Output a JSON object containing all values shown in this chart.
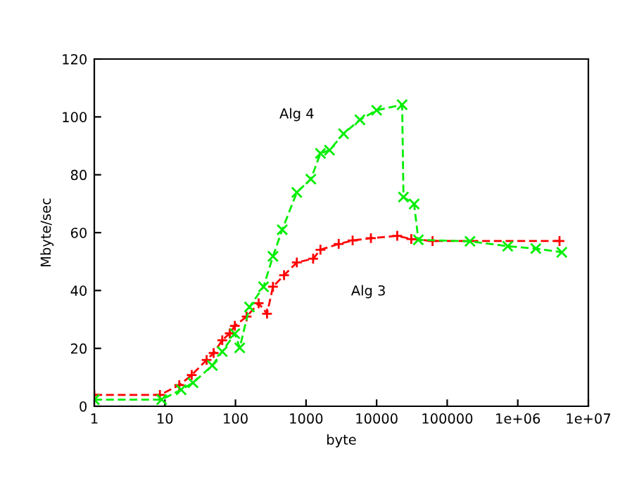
{
  "chart_data": {
    "type": "line",
    "xlabel": "byte",
    "ylabel": "Mbyte/sec",
    "log": "x",
    "xlim": [
      1,
      10000000
    ],
    "ylim": [
      0,
      120
    ],
    "xticks": [
      1,
      10,
      100,
      1000,
      10000,
      100000,
      {
        "value": 1000000,
        "label": "1e+06"
      },
      {
        "value": 10000000,
        "label": "1e+07"
      }
    ],
    "yticks": [
      0,
      20,
      40,
      60,
      80,
      100,
      120
    ],
    "grid": false,
    "legend": false,
    "marker": "cross",
    "line_style": "dashed",
    "series": [
      {
        "color": "#ff0000",
        "x": [
          1,
          8.5,
          16,
          24,
          39,
          49,
          65,
          83,
          98,
          144,
          213,
          280,
          340,
          488,
          740,
          1260,
          1600,
          2900,
          4570,
          8300,
          19600,
          31000,
          62000,
          3900000
        ],
        "values": [
          3.9,
          3.9,
          7.3,
          10.8,
          16,
          18.4,
          22.8,
          25.2,
          27.8,
          31,
          35.6,
          32,
          41.3,
          45.3,
          49.7,
          51,
          54.1,
          56.1,
          57.3,
          58.1,
          58.9,
          57.8,
          57.1,
          57.1
        ]
      },
      {
        "color": "#00ee00",
        "x": [
          1,
          9,
          17,
          25,
          47,
          65,
          98,
          115,
          158,
          250,
          340,
          460,
          740,
          1170,
          1600,
          2150,
          3400,
          5800,
          10000,
          23000,
          24000,
          34000,
          39000,
          210000,
          720000,
          1800000,
          4200000
        ],
        "values": [
          2.3,
          2.3,
          5.7,
          8.1,
          14.1,
          18.9,
          25.1,
          20.2,
          34.3,
          41.3,
          51.8,
          61,
          73.9,
          78.5,
          87.4,
          88.5,
          94.2,
          99,
          102.3,
          104.2,
          72.3,
          69.9,
          57.5,
          57,
          55.3,
          54.5,
          53.2
        ]
      }
    ],
    "annotations": [
      "Alg 4",
      "Alg 3"
    ]
  }
}
